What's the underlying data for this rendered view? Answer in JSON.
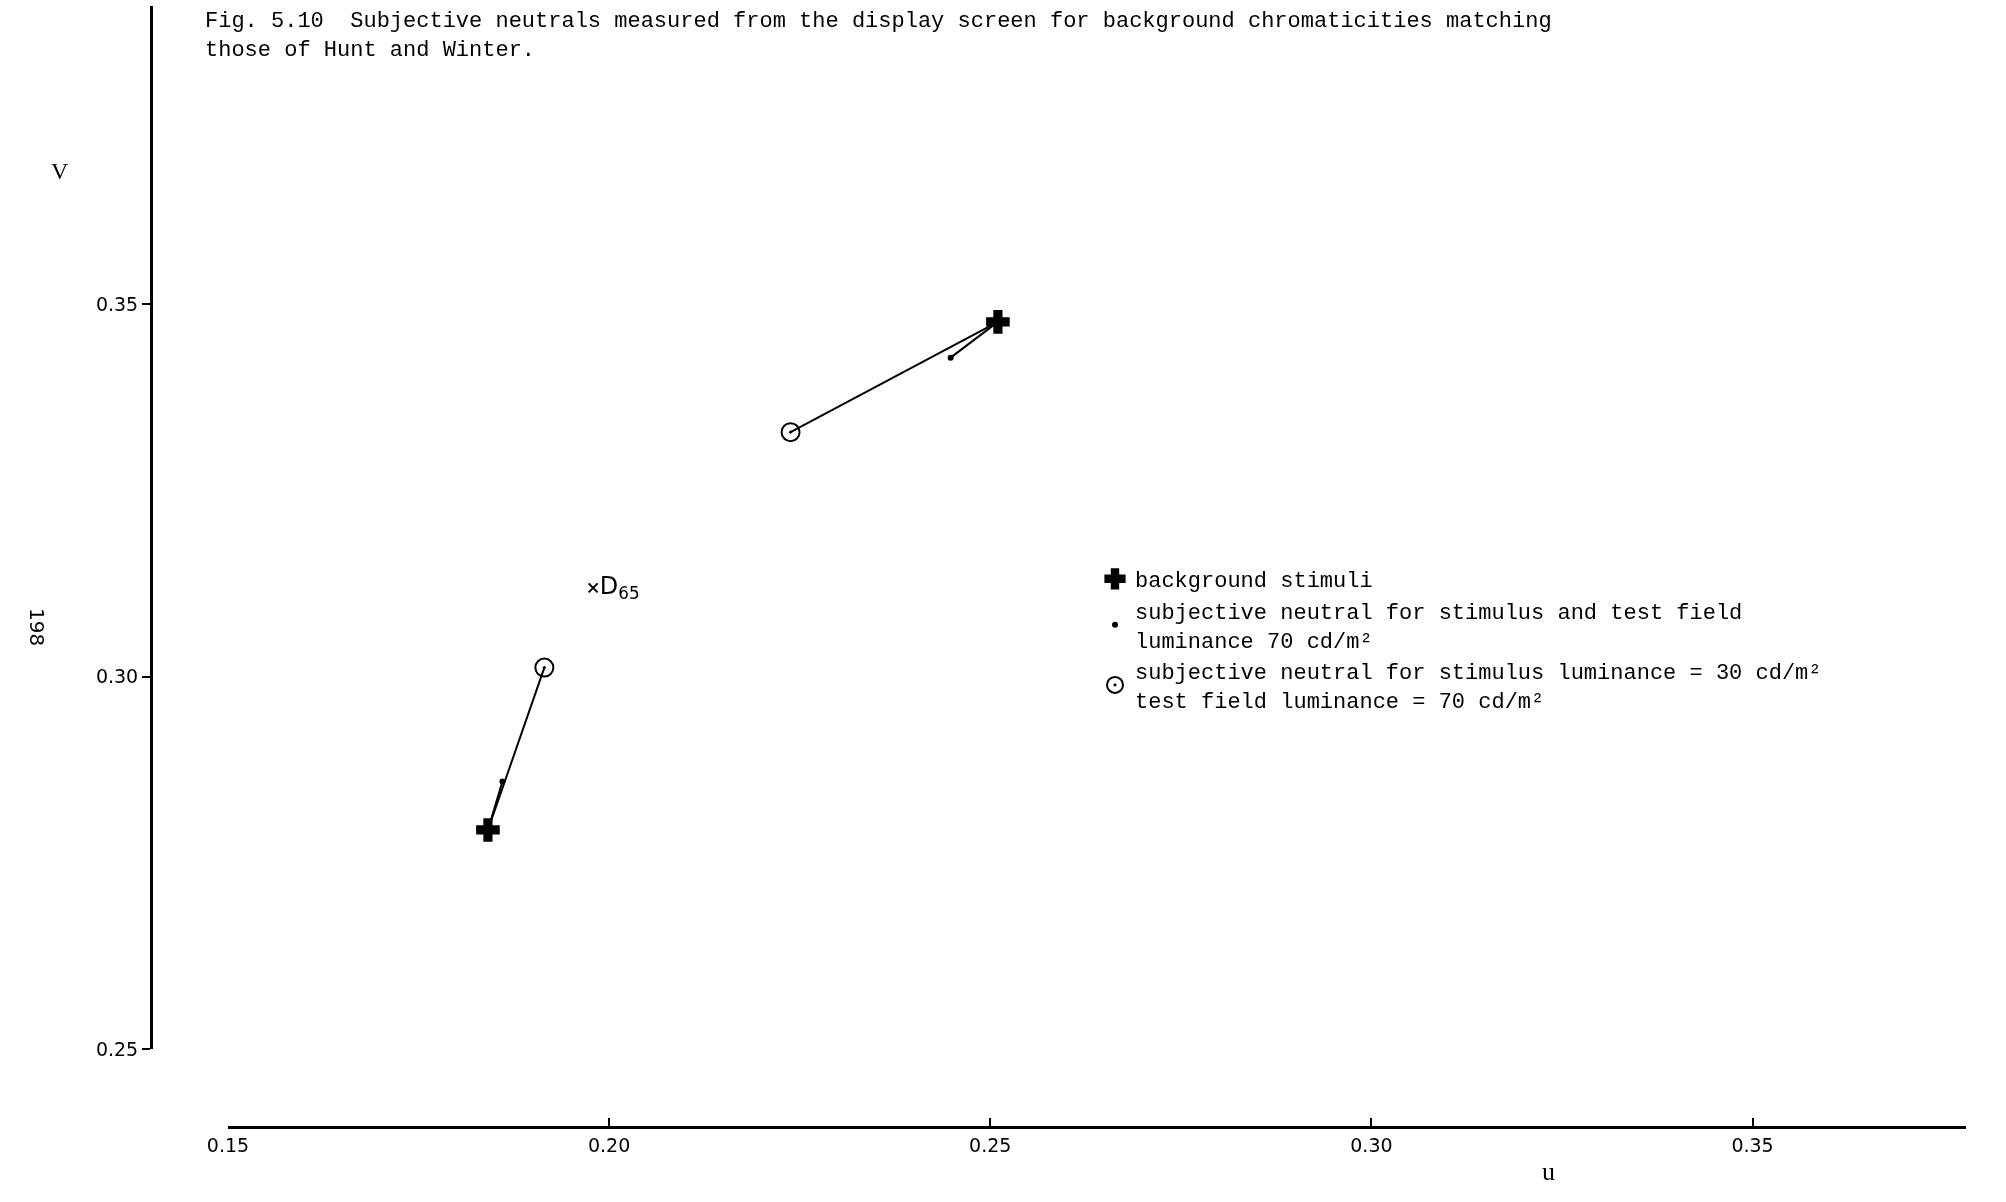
{
  "chart_data": {
    "type": "scatter",
    "title": "Fig. 5.10  Subjective neutrals measured from the display screen for background chromaticities matching\nthose of Hunt and Winter.",
    "xlabel": "u",
    "ylabel": "V",
    "xlim": [
      0.15,
      0.378
    ],
    "ylim": [
      0.25,
      0.39
    ],
    "xticks": [
      0.15,
      {
        "value": 0.2,
        "label": "0.20"
      },
      0.25,
      {
        "value": 0.3,
        "label": "0.30"
      },
      0.35
    ],
    "yticks": [
      0.25,
      {
        "value": 0.3,
        "label": "0.30"
      },
      0.35
    ],
    "grid": false,
    "legend": "right",
    "annotations": [
      "198"
    ],
    "series": [
      {
        "type": "line",
        "color": "#000000",
        "marker": "none",
        "x": [
          0.251,
          0.2238
        ],
        "values": [
          0.3476,
          0.3328
        ]
      },
      {
        "type": "line",
        "color": "#000000",
        "marker": "none",
        "x": [
          0.251,
          0.2448
        ],
        "values": [
          0.3476,
          0.3428
        ]
      },
      {
        "type": "line",
        "color": "#000000",
        "marker": "none",
        "x": [
          0.1841,
          0.1915
        ],
        "values": [
          0.2794,
          0.3012
        ]
      },
      {
        "type": "line",
        "color": "#000000",
        "marker": "none",
        "x": [
          0.1841,
          0.186
        ],
        "values": [
          0.2794,
          0.2859
        ]
      },
      {
        "name": "background stimuli",
        "color": "#000000",
        "marker": "cross",
        "x": [
          0.251,
          0.1841
        ],
        "values": [
          0.3476,
          0.2794
        ]
      },
      {
        "name": "subjective neutral for stimulus and test field\nluminance 70 cd/m²",
        "color": "#000000",
        "marker": "circle",
        "x": [
          0.2448,
          0.186
        ],
        "values": [
          0.3428,
          0.2859
        ]
      },
      {
        "name": "subjective neutral for stimulus luminance = 30 cd/m²\ntest field luminance = 70 cd/m²",
        "color": "#000000",
        "marker": "circle-dot",
        "x": [
          0.2238,
          0.1915
        ],
        "values": [
          0.3328,
          0.3012
        ]
      },
      {
        "name": "D$_{65}$",
        "color": "#000000",
        "marker": "x",
        "x": [
          0.1979
        ],
        "values": [
          0.3119
        ]
      }
    ]
  }
}
